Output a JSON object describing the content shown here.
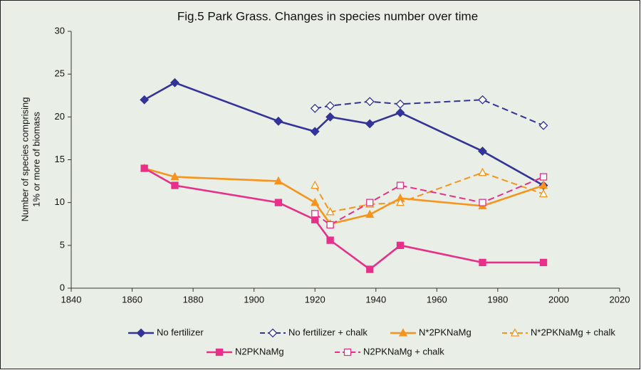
{
  "chart_data": {
    "type": "line",
    "title": "Fig.5  Park Grass.  Changes in species number over time",
    "y_label": [
      "Number of species comprising",
      "1% or more of biomass"
    ],
    "xlim": [
      1840,
      2020
    ],
    "xticks": [
      1840,
      1860,
      1880,
      1900,
      1920,
      1940,
      1960,
      1980,
      2000,
      2020
    ],
    "ylim": [
      0,
      30
    ],
    "yticks": [
      0,
      5,
      10,
      15,
      20,
      25,
      30
    ],
    "grid": false,
    "series": [
      {
        "name": "No fertilizer",
        "color": "#333399",
        "marker": "diamond",
        "filled": true,
        "dashed": false,
        "x": [
          1864,
          1874,
          1908,
          1920,
          1925,
          1938,
          1948,
          1975,
          1995
        ],
        "values": [
          22,
          24,
          19.5,
          18.3,
          20,
          19.2,
          20.5,
          16,
          12
        ]
      },
      {
        "name": "No fertilizer + chalk",
        "color": "#333399",
        "marker": "diamond",
        "filled": false,
        "dashed": true,
        "x": [
          1920,
          1925,
          1938,
          1948,
          1975,
          1995
        ],
        "values": [
          21,
          21.3,
          21.8,
          21.5,
          22,
          19
        ]
      },
      {
        "name": "N*2PKNaMg",
        "color": "#f7941d",
        "marker": "triangle",
        "filled": true,
        "dashed": false,
        "x": [
          1864,
          1874,
          1908,
          1920,
          1925,
          1938,
          1948,
          1975,
          1995
        ],
        "values": [
          14,
          13,
          12.5,
          10,
          7.5,
          8.6,
          10.5,
          9.6,
          12
        ]
      },
      {
        "name": "N*2PKNaMg + chalk",
        "color": "#f7941d",
        "marker": "triangle",
        "filled": false,
        "dashed": true,
        "x": [
          1920,
          1925,
          1938,
          1948,
          1975,
          1995
        ],
        "values": [
          12,
          8.9,
          9.8,
          10,
          13.5,
          11
        ]
      },
      {
        "name": "N2PKNaMg",
        "color": "#e8308a",
        "marker": "square",
        "filled": true,
        "dashed": false,
        "x": [
          1864,
          1874,
          1908,
          1920,
          1925,
          1938,
          1948,
          1975,
          1995
        ],
        "values": [
          14,
          12,
          10,
          8,
          5.6,
          2.2,
          5,
          3,
          3
        ]
      },
      {
        "name": "N2PKNaMg + chalk",
        "color": "#e8308a",
        "marker": "square",
        "filled": false,
        "dashed": true,
        "x": [
          1920,
          1925,
          1938,
          1948,
          1975,
          1995
        ],
        "values": [
          8.7,
          7.4,
          10,
          12,
          10,
          13
        ]
      }
    ]
  }
}
